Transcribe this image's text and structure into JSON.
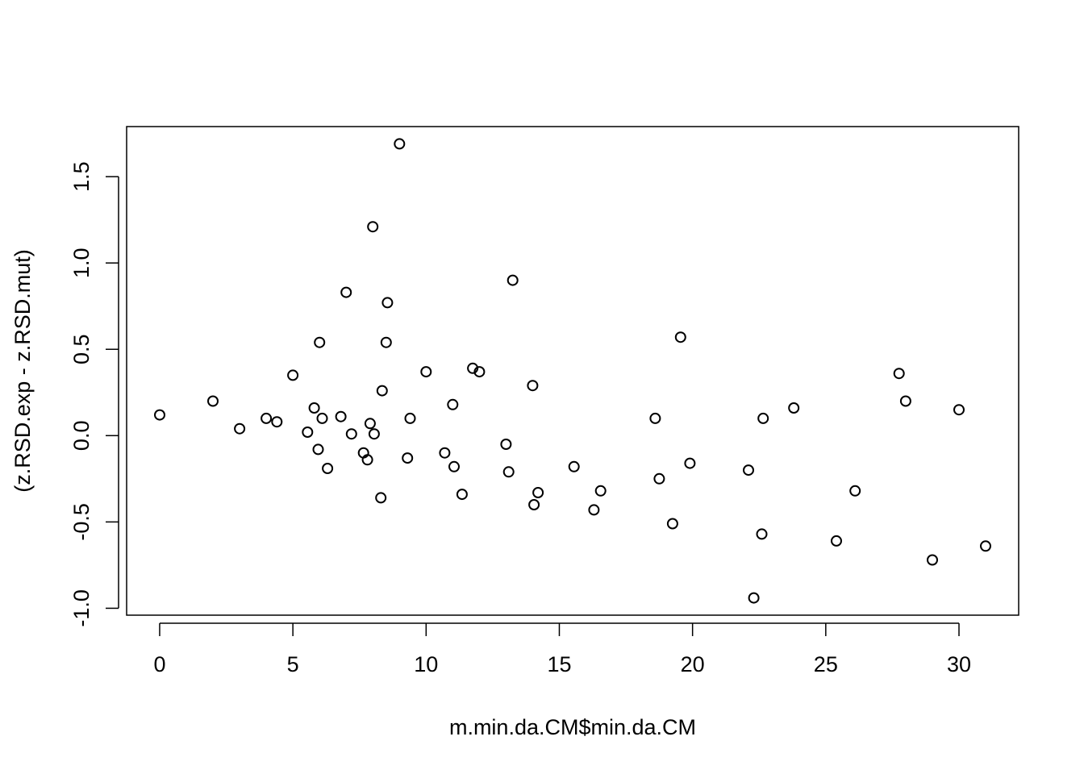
{
  "chart_data": {
    "type": "scatter",
    "title": "",
    "xlabel": "m.min.da.CM$min.da.CM",
    "ylabel": "(z.RSD.exp - z.RSD.mut)",
    "xlim": [
      -1.24,
      32.24
    ],
    "ylim": [
      -1.04,
      1.79
    ],
    "x_ticks": [
      0,
      5,
      10,
      15,
      20,
      25,
      30
    ],
    "x_tick_labels": [
      "0",
      "5",
      "10",
      "15",
      "20",
      "25",
      "30"
    ],
    "y_ticks": [
      -1.0,
      -0.5,
      0.0,
      0.5,
      1.0,
      1.5
    ],
    "y_tick_labels": [
      "-1.0",
      "-0.5",
      "0.0",
      "0.5",
      "1.0",
      "1.5"
    ],
    "grid": false,
    "legend": "none",
    "marker": "open-circle",
    "points": [
      {
        "x": 0.0,
        "y": 0.12
      },
      {
        "x": 2.0,
        "y": 0.2
      },
      {
        "x": 3.0,
        "y": 0.04
      },
      {
        "x": 4.0,
        "y": 0.1
      },
      {
        "x": 4.4,
        "y": 0.08
      },
      {
        "x": 5.0,
        "y": 0.35
      },
      {
        "x": 5.55,
        "y": 0.02
      },
      {
        "x": 5.8,
        "y": 0.16
      },
      {
        "x": 5.95,
        "y": -0.08
      },
      {
        "x": 6.0,
        "y": 0.54
      },
      {
        "x": 6.1,
        "y": 0.1
      },
      {
        "x": 6.3,
        "y": -0.19
      },
      {
        "x": 6.8,
        "y": 0.11
      },
      {
        "x": 7.0,
        "y": 0.83
      },
      {
        "x": 7.2,
        "y": 0.01
      },
      {
        "x": 7.65,
        "y": -0.1
      },
      {
        "x": 7.8,
        "y": -0.14
      },
      {
        "x": 7.9,
        "y": 0.07
      },
      {
        "x": 8.0,
        "y": 1.21
      },
      {
        "x": 8.05,
        "y": 0.01
      },
      {
        "x": 8.3,
        "y": -0.36
      },
      {
        "x": 8.35,
        "y": 0.26
      },
      {
        "x": 8.5,
        "y": 0.54
      },
      {
        "x": 8.55,
        "y": 0.77
      },
      {
        "x": 9.0,
        "y": 1.69
      },
      {
        "x": 9.3,
        "y": -0.13
      },
      {
        "x": 9.4,
        "y": 0.1
      },
      {
        "x": 10.0,
        "y": 0.37
      },
      {
        "x": 10.7,
        "y": -0.1
      },
      {
        "x": 11.0,
        "y": 0.18
      },
      {
        "x": 11.05,
        "y": -0.18
      },
      {
        "x": 11.35,
        "y": -0.34
      },
      {
        "x": 11.75,
        "y": 0.39
      },
      {
        "x": 12.0,
        "y": 0.37
      },
      {
        "x": 13.0,
        "y": -0.05
      },
      {
        "x": 13.1,
        "y": -0.21
      },
      {
        "x": 13.25,
        "y": 0.9
      },
      {
        "x": 14.0,
        "y": 0.29
      },
      {
        "x": 14.05,
        "y": -0.4
      },
      {
        "x": 14.2,
        "y": -0.33
      },
      {
        "x": 15.55,
        "y": -0.18
      },
      {
        "x": 16.3,
        "y": -0.43
      },
      {
        "x": 16.55,
        "y": -0.32
      },
      {
        "x": 18.6,
        "y": 0.1
      },
      {
        "x": 18.75,
        "y": -0.25
      },
      {
        "x": 19.25,
        "y": -0.51
      },
      {
        "x": 19.55,
        "y": 0.57
      },
      {
        "x": 19.9,
        "y": -0.16
      },
      {
        "x": 22.1,
        "y": -0.2
      },
      {
        "x": 22.3,
        "y": -0.94
      },
      {
        "x": 22.6,
        "y": -0.57
      },
      {
        "x": 22.65,
        "y": 0.1
      },
      {
        "x": 23.8,
        "y": 0.16
      },
      {
        "x": 25.4,
        "y": -0.61
      },
      {
        "x": 26.1,
        "y": -0.32
      },
      {
        "x": 27.75,
        "y": 0.36
      },
      {
        "x": 28.0,
        "y": 0.2
      },
      {
        "x": 29.0,
        "y": -0.72
      },
      {
        "x": 30.0,
        "y": 0.15
      },
      {
        "x": 31.0,
        "y": -0.64
      }
    ]
  }
}
